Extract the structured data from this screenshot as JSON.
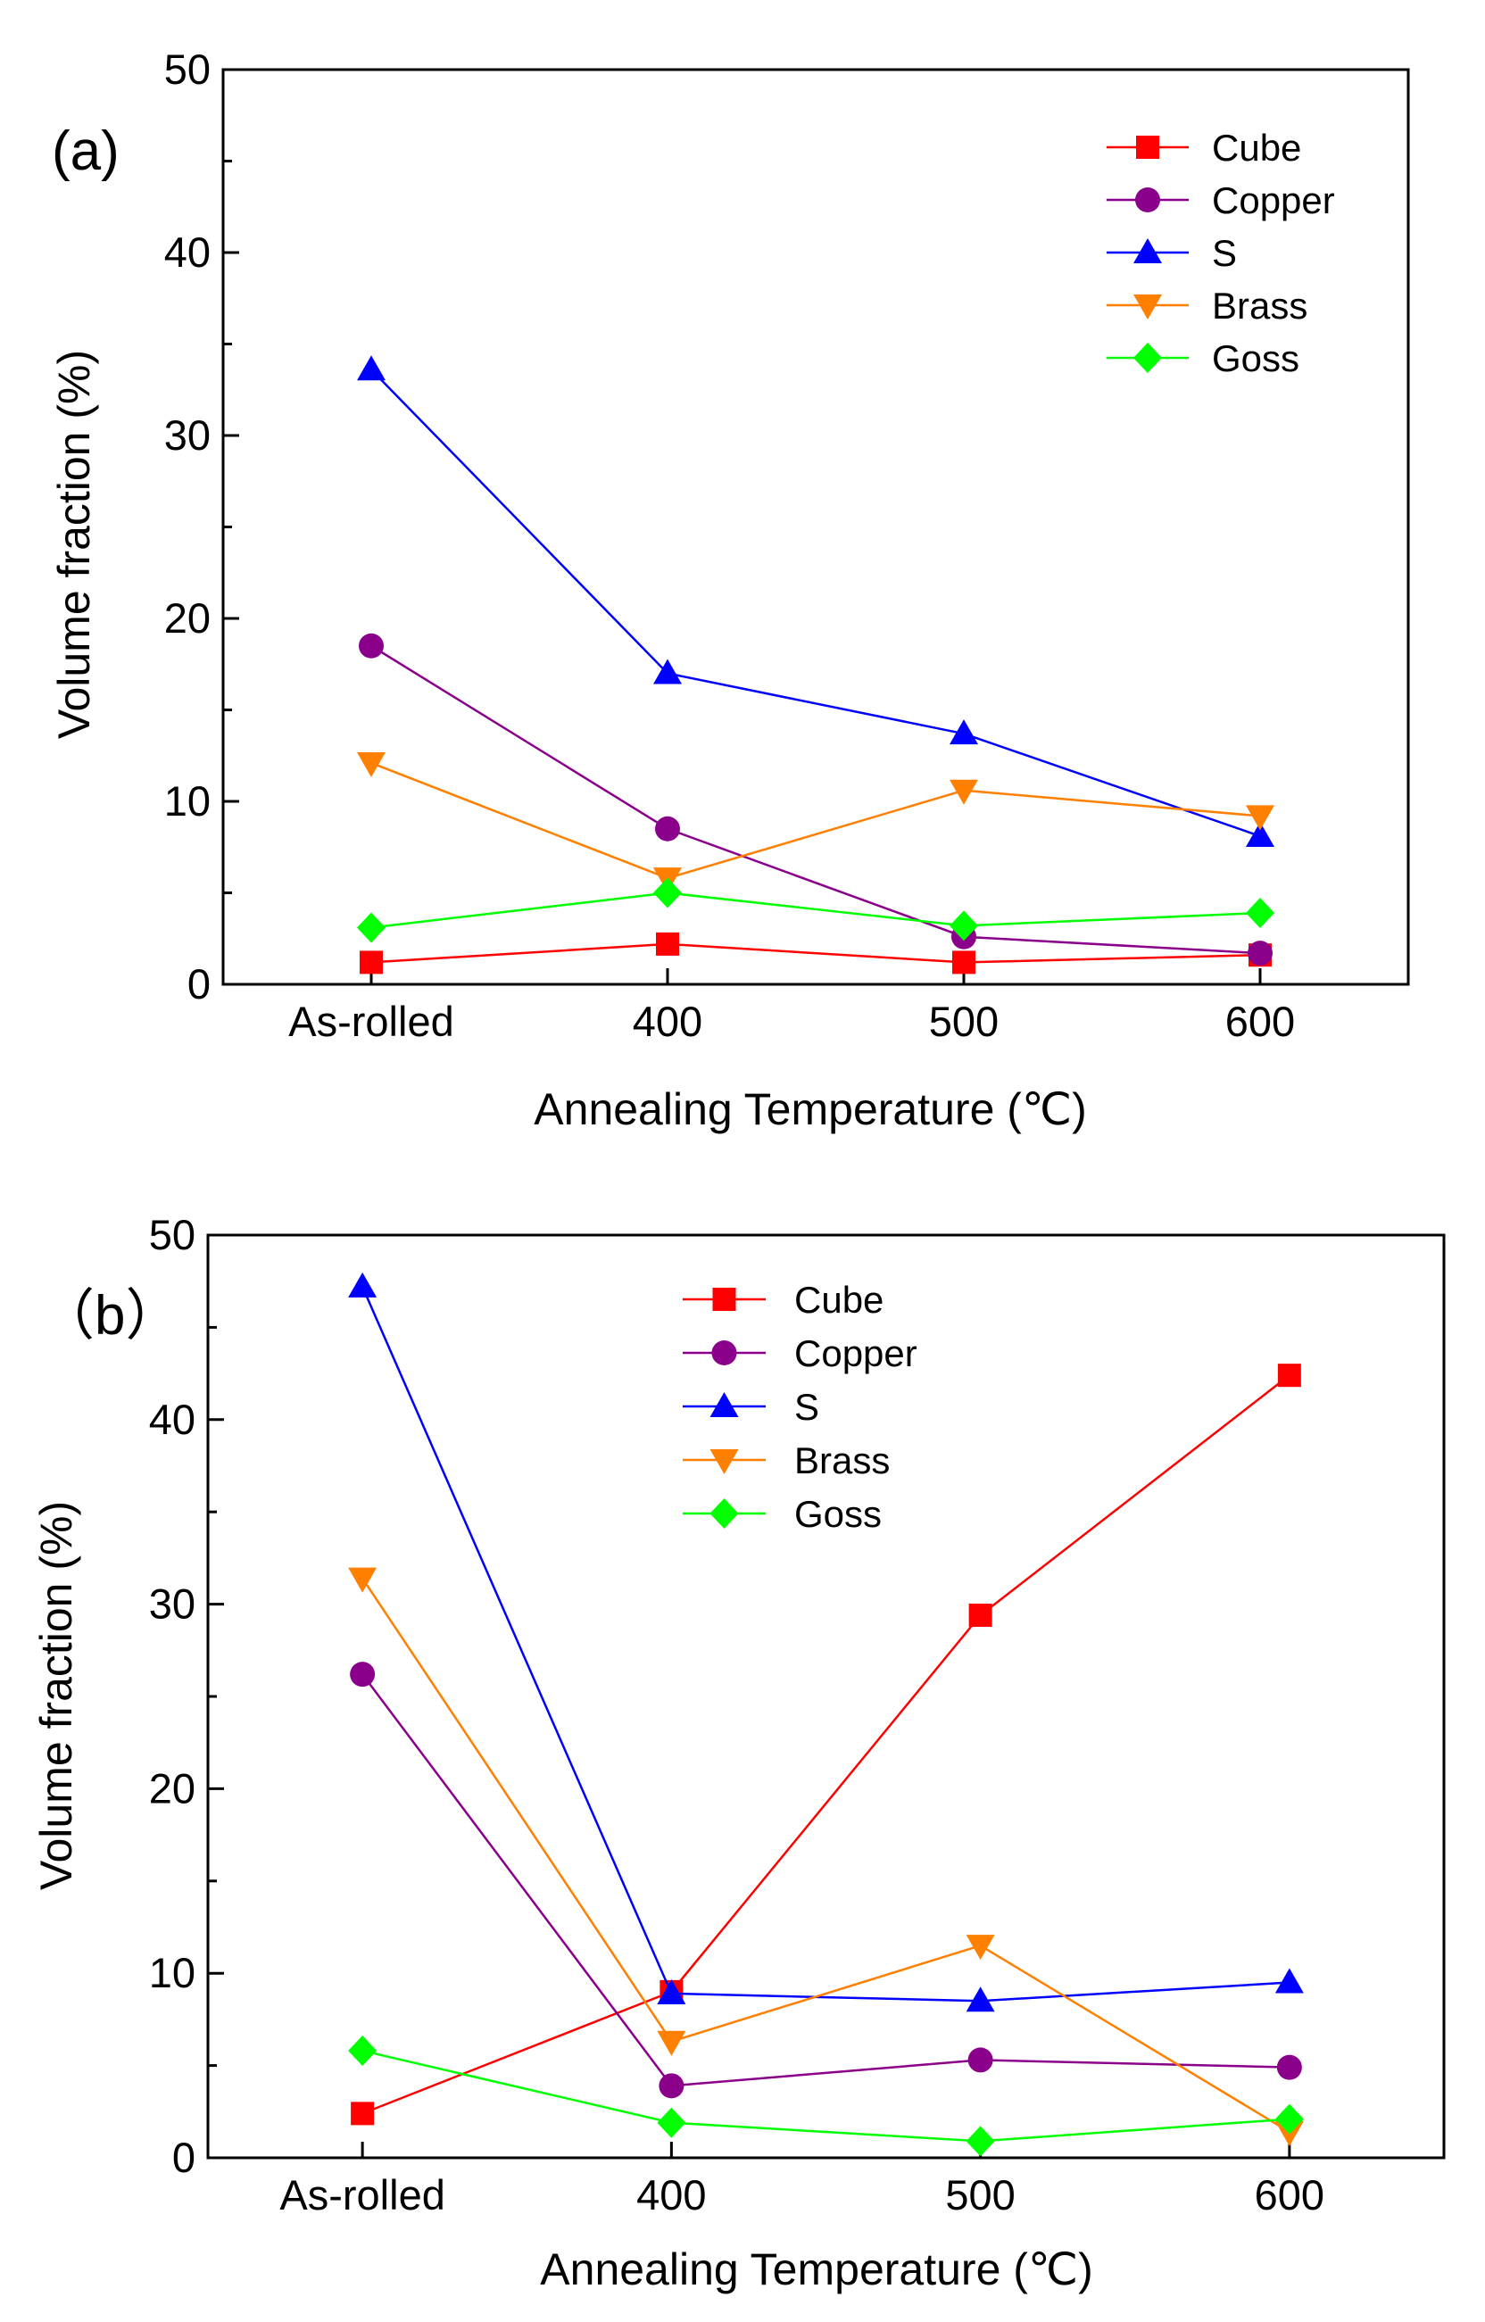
{
  "colors": {
    "Cube": "#ff0000",
    "Copper": "#8b008b",
    "S": "#0000ff",
    "Brass": "#ff7f00",
    "Goss": "#00ff00"
  },
  "chart_data": [
    {
      "type": "line",
      "panel_label": "(a)",
      "categories": [
        "As-rolled",
        "400",
        "500",
        "600"
      ],
      "xlabel": "Annealing Temperature (℃)",
      "ylabel": "Volume fraction (%)",
      "ylim": [
        0,
        50
      ],
      "yticks": [
        "0",
        "10",
        "20",
        "30",
        "40",
        "50"
      ],
      "legend_position": "top-right",
      "series": [
        {
          "name": "Cube",
          "marker": "square",
          "values": [
            1.2,
            2.2,
            1.2,
            1.6
          ]
        },
        {
          "name": "Copper",
          "marker": "circle",
          "values": [
            18.5,
            8.5,
            2.6,
            1.7
          ]
        },
        {
          "name": "S",
          "marker": "triangle-up",
          "values": [
            33.6,
            17.0,
            13.7,
            8.1
          ]
        },
        {
          "name": "Brass",
          "marker": "triangle-down",
          "values": [
            12.1,
            5.8,
            10.6,
            9.2
          ]
        },
        {
          "name": "Goss",
          "marker": "diamond",
          "values": [
            3.1,
            5.0,
            3.2,
            3.9
          ]
        }
      ]
    },
    {
      "type": "line",
      "panel_label": "（b）",
      "categories": [
        "As-rolled",
        "400",
        "500",
        "600"
      ],
      "xlabel": "Annealing Temperature (℃)",
      "ylabel": "Volume fraction (%)",
      "ylim": [
        0,
        50
      ],
      "yticks": [
        "0",
        "10",
        "20",
        "30",
        "40",
        "50"
      ],
      "legend_position": "top-center",
      "series": [
        {
          "name": "Cube",
          "marker": "square",
          "values": [
            2.4,
            9.0,
            29.4,
            42.4
          ]
        },
        {
          "name": "Copper",
          "marker": "circle",
          "values": [
            26.2,
            3.9,
            5.3,
            4.9
          ]
        },
        {
          "name": "S",
          "marker": "triangle-up",
          "values": [
            47.2,
            8.9,
            8.5,
            9.5
          ]
        },
        {
          "name": "Brass",
          "marker": "triangle-down",
          "values": [
            31.4,
            6.3,
            11.5,
            1.4
          ]
        },
        {
          "name": "Goss",
          "marker": "diamond",
          "values": [
            5.8,
            1.9,
            0.9,
            2.1
          ]
        }
      ]
    }
  ]
}
